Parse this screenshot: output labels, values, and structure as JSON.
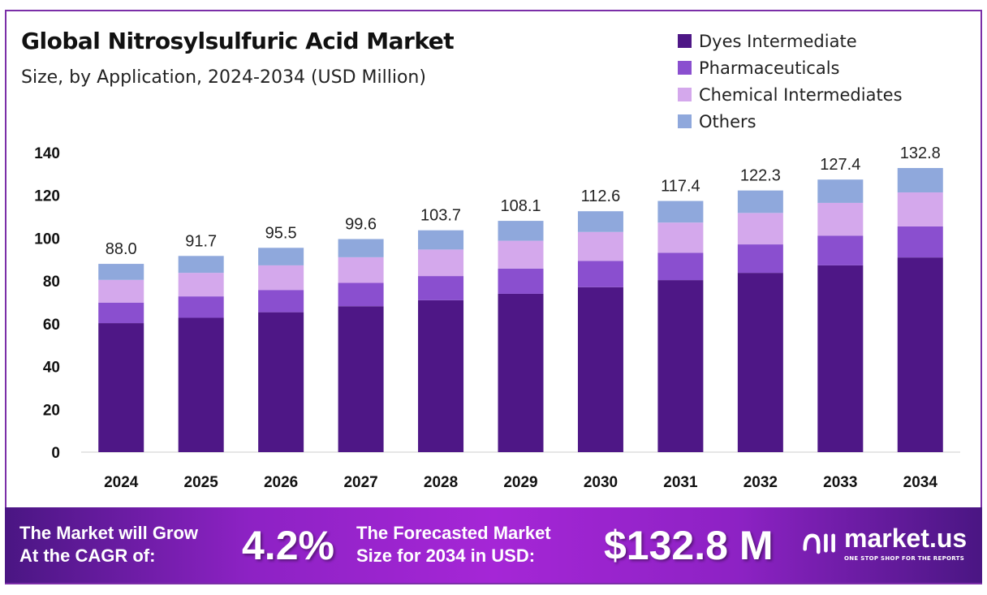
{
  "chart_data": {
    "type": "bar",
    "stacked": true,
    "title": "Global Nitrosylsulfuric Acid Market",
    "subtitle": "Size, by Application, 2024-2034 (USD Million)",
    "categories": [
      "2024",
      "2025",
      "2026",
      "2027",
      "2028",
      "2029",
      "2030",
      "2031",
      "2032",
      "2033",
      "2034"
    ],
    "series": [
      {
        "name": "Dyes Intermediate",
        "color": "#4e1786",
        "values": [
          60.3,
          62.8,
          65.4,
          68.2,
          71.0,
          74.0,
          77.1,
          80.4,
          83.8,
          87.3,
          91.0
        ]
      },
      {
        "name": "Pharmaceuticals",
        "color": "#8a4fcf",
        "values": [
          9.6,
          10.0,
          10.4,
          10.9,
          11.3,
          11.8,
          12.3,
          12.8,
          13.3,
          13.9,
          14.5
        ]
      },
      {
        "name": "Chemical Intermediates",
        "color": "#d4a8ec",
        "values": [
          10.6,
          11.0,
          11.5,
          12.0,
          12.4,
          13.0,
          13.5,
          14.1,
          14.7,
          15.3,
          15.9
        ]
      },
      {
        "name": "Others",
        "color": "#8fa8dc",
        "values": [
          7.5,
          7.9,
          8.2,
          8.5,
          9.0,
          9.3,
          9.7,
          10.1,
          10.5,
          10.9,
          11.4
        ]
      }
    ],
    "totals": [
      "88.0",
      "91.7",
      "95.5",
      "99.6",
      "103.7",
      "108.1",
      "112.6",
      "117.4",
      "122.3",
      "127.4",
      "132.8"
    ],
    "yticks": [
      0,
      20,
      40,
      60,
      80,
      100,
      120,
      140
    ],
    "ylim": [
      0,
      140
    ],
    "grid": false,
    "legend": "top-right"
  },
  "footer": {
    "cagr_label_1": "The Market will Grow",
    "cagr_label_2": "At the CAGR of:",
    "cagr_value": "4.2%",
    "forecast_label_1": "The Forecasted Market",
    "forecast_label_2": "Size for 2034 in USD:",
    "forecast_value": "$132.8 M",
    "logo_name": "market.us",
    "logo_tagline": "ONE STOP SHOP FOR THE REPORTS"
  }
}
